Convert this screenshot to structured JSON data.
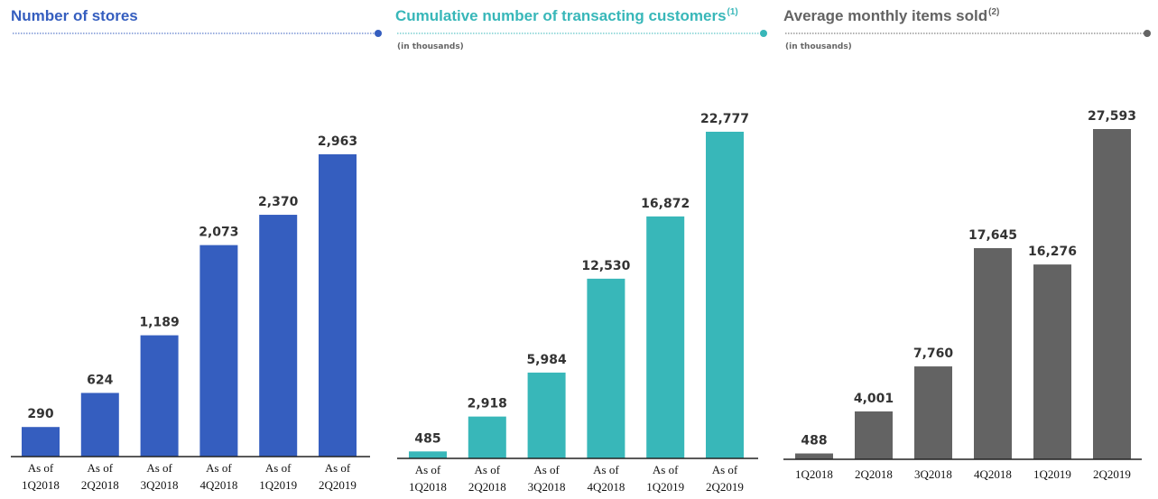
{
  "chart_data": [
    {
      "type": "bar",
      "title": "Number of stores",
      "subtitle": "",
      "color": "#355EBF",
      "categories": [
        "As of\n1Q2018",
        "As of\n2Q2018",
        "As of\n3Q2018",
        "As of\n4Q2018",
        "As of\n1Q2019",
        "As of\n2Q2019"
      ],
      "values": [
        290,
        624,
        1189,
        2073,
        2370,
        2963
      ],
      "value_labels": [
        "290",
        "624",
        "1,189",
        "2,073",
        "2,370",
        "2,963"
      ],
      "grid": false
    },
    {
      "type": "bar",
      "title": "Cumulative number of transacting customers",
      "title_sup": "(1)",
      "subtitle": "(in thousands)",
      "color": "#38B7B9",
      "categories": [
        "As of\n1Q2018",
        "As of\n2Q2018",
        "As of\n3Q2018",
        "As of\n4Q2018",
        "As of\n1Q2019",
        "As of\n2Q2019"
      ],
      "values": [
        485,
        2918,
        5984,
        12530,
        16872,
        22777
      ],
      "value_labels": [
        "485",
        "2,918",
        "5,984",
        "12,530",
        "16,872",
        "22,777"
      ],
      "grid": false
    },
    {
      "type": "bar",
      "title": "Average monthly items sold",
      "title_sup": "(2)",
      "subtitle": "(in thousands)",
      "color": "#636363",
      "categories": [
        "1Q2018",
        "2Q2018",
        "3Q2018",
        "4Q2018",
        "1Q2019",
        "2Q2019"
      ],
      "values": [
        488,
        4001,
        7760,
        17645,
        16276,
        27593
      ],
      "value_labels": [
        "488",
        "4,001",
        "7,760",
        "17,645",
        "16,276",
        "27,593"
      ],
      "grid": false
    }
  ]
}
